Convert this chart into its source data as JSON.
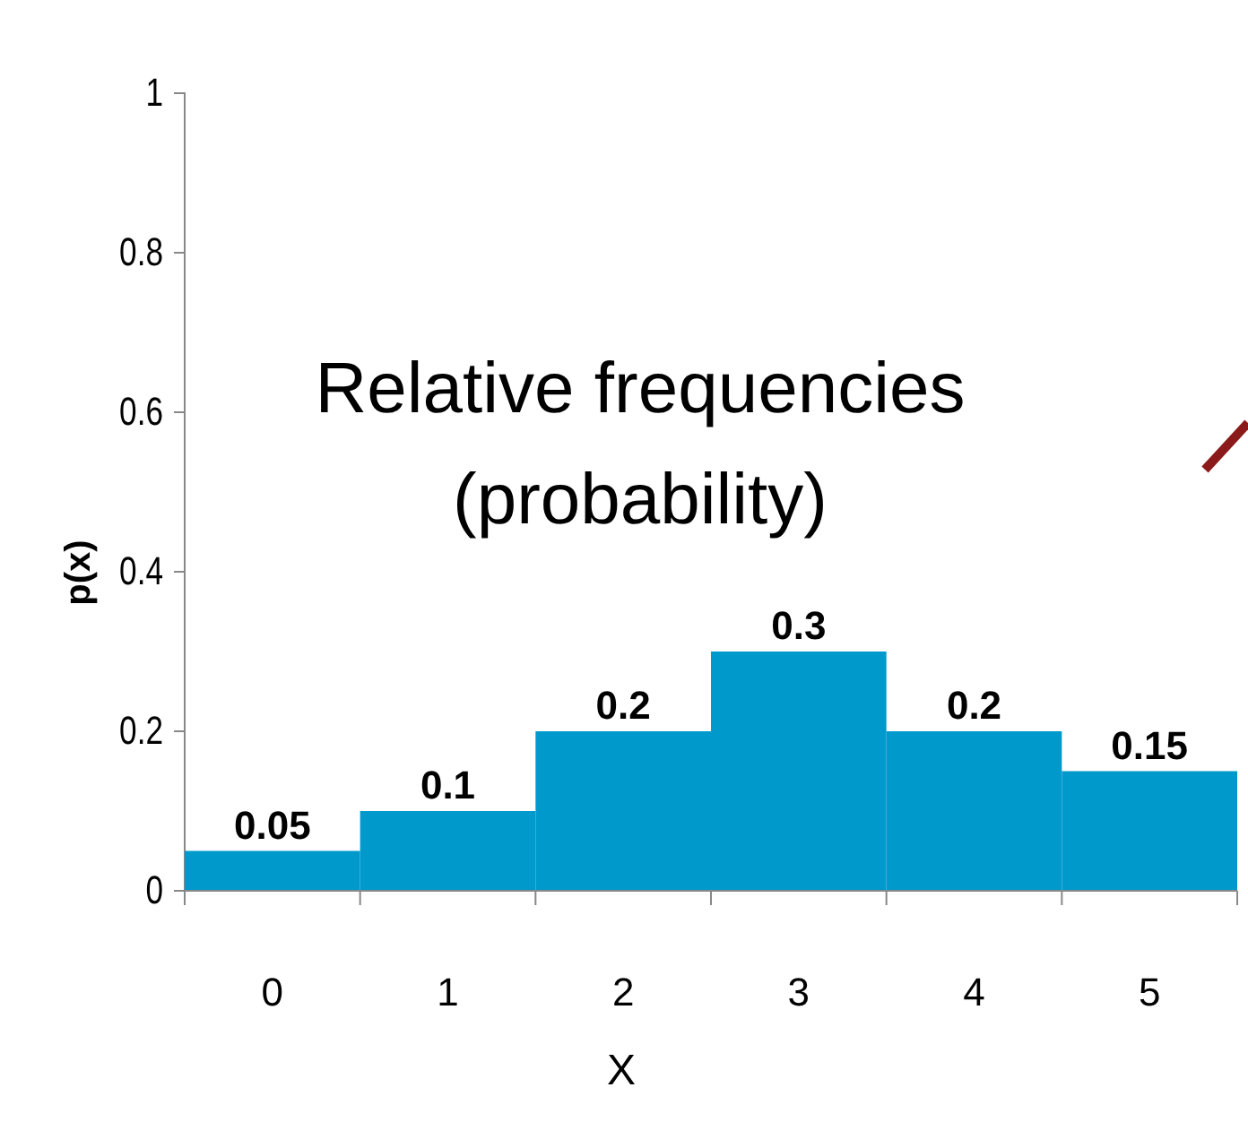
{
  "chart_data": {
    "type": "bar",
    "xlabel": "X",
    "ylabel": "p(x)",
    "categories": [
      "0",
      "1",
      "2",
      "3",
      "4",
      "5"
    ],
    "values": [
      0.05,
      0.1,
      0.2,
      0.3,
      0.2,
      0.15
    ],
    "color": "#0099cc",
    "data_labels": true,
    "ylim": [
      0,
      1
    ],
    "yticks": [
      0,
      0.2,
      0.4,
      0.6,
      0.8,
      1
    ],
    "grid": false,
    "annotations": [
      "Relative frequencies\n(probability)"
    ]
  }
}
